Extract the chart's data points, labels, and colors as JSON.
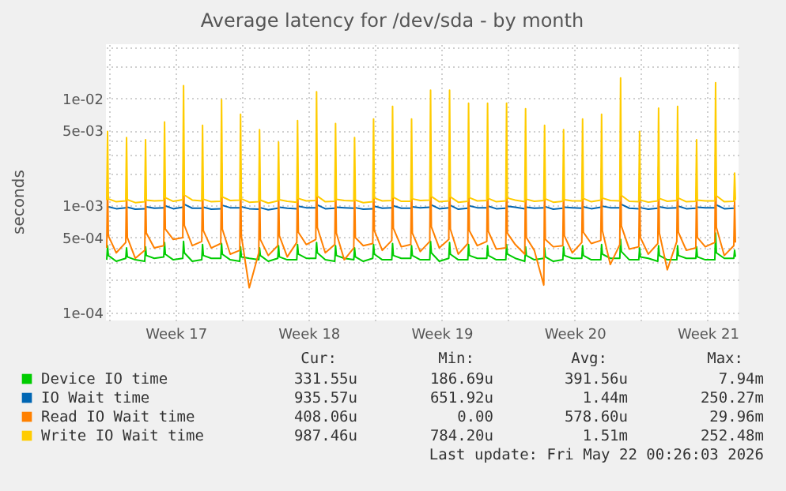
{
  "chart_data": {
    "type": "line",
    "title": "Average latency for /dev/sda - by month",
    "ylabel": "seconds",
    "log": "y",
    "grid": true,
    "legend": "bottom",
    "line_style": "solid",
    "marker": "none",
    "xlim": [
      "2026-04-19T20:00",
      "2026-05-23T03:00"
    ],
    "ylim": [
      8.4e-05,
      0.032
    ],
    "xticks": [
      {
        "value": "2026-04-23T12:00",
        "label": "Week 17"
      },
      {
        "value": "2026-04-30T12:00",
        "label": "Week 18"
      },
      {
        "value": "2026-05-07T12:00",
        "label": "Week 19"
      },
      {
        "value": "2026-05-14T12:00",
        "label": "Week 20"
      },
      {
        "value": "2026-05-21T12:00",
        "label": "Week 21"
      },
      {
        "value": "2026-04-20T00:00",
        "label": null
      },
      {
        "value": "2026-04-27T00:00",
        "label": null
      },
      {
        "value": "2026-05-04T00:00",
        "label": null
      },
      {
        "value": "2026-05-11T00:00",
        "label": null
      },
      {
        "value": "2026-05-18T00:00",
        "label": null
      }
    ],
    "yticks": [
      {
        "value": 0.0001,
        "label": "1e-04"
      },
      {
        "value": 0.0005,
        "label": "5e-04"
      },
      {
        "value": 0.001,
        "label": "1e-03"
      },
      {
        "value": 0.005,
        "label": "5e-03"
      },
      {
        "value": 0.01,
        "label": "1e-02"
      },
      {
        "value": 0.0002,
        "label": null
      },
      {
        "value": 0.0003,
        "label": null
      },
      {
        "value": 0.0004,
        "label": null
      },
      {
        "value": 0.002,
        "label": null
      },
      {
        "value": 0.003,
        "label": null
      },
      {
        "value": 0.004,
        "label": null
      },
      {
        "value": 0.02,
        "label": null
      },
      {
        "value": 0.03,
        "label": null
      }
    ],
    "x": [
      "2026-04-19T21:00",
      "2026-04-19T22:00",
      "2026-04-19T23:00",
      "2026-04-20T09:00",
      "2026-04-20T21:00",
      "2026-04-20T22:00",
      "2026-04-20T23:00",
      "2026-04-21T09:00",
      "2026-04-21T21:00",
      "2026-04-21T22:00",
      "2026-04-21T23:00",
      "2026-04-22T09:00",
      "2026-04-22T21:00",
      "2026-04-22T22:00",
      "2026-04-22T23:00",
      "2026-04-23T09:00",
      "2026-04-23T21:00",
      "2026-04-23T22:00",
      "2026-04-23T23:00",
      "2026-04-24T09:00",
      "2026-04-24T21:00",
      "2026-04-24T22:00",
      "2026-04-24T23:00",
      "2026-04-25T09:00",
      "2026-04-25T21:00",
      "2026-04-25T22:00",
      "2026-04-25T23:00",
      "2026-04-26T09:00",
      "2026-04-26T21:00",
      "2026-04-26T22:00",
      "2026-04-26T23:00",
      "2026-04-27T09:00",
      "2026-04-27T21:00",
      "2026-04-27T22:00",
      "2026-04-27T23:00",
      "2026-04-28T09:00",
      "2026-04-28T21:00",
      "2026-04-28T22:00",
      "2026-04-28T23:00",
      "2026-04-29T09:00",
      "2026-04-29T21:00",
      "2026-04-29T22:00",
      "2026-04-29T23:00",
      "2026-04-30T09:00",
      "2026-04-30T21:00",
      "2026-04-30T22:00",
      "2026-04-30T23:00",
      "2026-05-01T09:00",
      "2026-05-01T21:00",
      "2026-05-01T22:00",
      "2026-05-01T23:00",
      "2026-05-02T09:00",
      "2026-05-02T21:00",
      "2026-05-02T22:00",
      "2026-05-02T23:00",
      "2026-05-03T09:00",
      "2026-05-03T21:00",
      "2026-05-03T22:00",
      "2026-05-03T23:00",
      "2026-05-04T09:00",
      "2026-05-04T21:00",
      "2026-05-04T22:00",
      "2026-05-04T23:00",
      "2026-05-05T09:00",
      "2026-05-05T21:00",
      "2026-05-05T22:00",
      "2026-05-05T23:00",
      "2026-05-06T09:00",
      "2026-05-06T21:00",
      "2026-05-06T22:00",
      "2026-05-06T23:00",
      "2026-05-07T09:00",
      "2026-05-07T21:00",
      "2026-05-07T22:00",
      "2026-05-07T23:00",
      "2026-05-08T09:00",
      "2026-05-08T21:00",
      "2026-05-08T22:00",
      "2026-05-08T23:00",
      "2026-05-09T09:00",
      "2026-05-09T21:00",
      "2026-05-09T22:00",
      "2026-05-09T23:00",
      "2026-05-10T09:00",
      "2026-05-10T21:00",
      "2026-05-10T22:00",
      "2026-05-10T23:00",
      "2026-05-11T09:00",
      "2026-05-11T21:00",
      "2026-05-11T22:00",
      "2026-05-11T23:00",
      "2026-05-12T09:00",
      "2026-05-12T21:00",
      "2026-05-12T22:00",
      "2026-05-12T23:00",
      "2026-05-13T09:00",
      "2026-05-13T21:00",
      "2026-05-13T22:00",
      "2026-05-13T23:00",
      "2026-05-14T09:00",
      "2026-05-14T21:00",
      "2026-05-14T22:00",
      "2026-05-14T23:00",
      "2026-05-15T09:00",
      "2026-05-15T21:00",
      "2026-05-15T22:00",
      "2026-05-15T23:00",
      "2026-05-16T09:00",
      "2026-05-16T21:00",
      "2026-05-16T22:00",
      "2026-05-16T23:00",
      "2026-05-17T09:00",
      "2026-05-17T21:00",
      "2026-05-17T22:00",
      "2026-05-17T23:00",
      "2026-05-18T09:00",
      "2026-05-18T21:00",
      "2026-05-18T22:00",
      "2026-05-18T23:00",
      "2026-05-19T09:00",
      "2026-05-19T21:00",
      "2026-05-19T22:00",
      "2026-05-19T23:00",
      "2026-05-20T09:00",
      "2026-05-20T21:00",
      "2026-05-20T22:00",
      "2026-05-20T23:00",
      "2026-05-21T09:00",
      "2026-05-21T21:00",
      "2026-05-21T22:00",
      "2026-05-21T23:00",
      "2026-05-22T09:00",
      "2026-05-22T21:00",
      "2026-05-22T22:00",
      "2026-05-22T23:00"
    ],
    "series": [
      {
        "name": "Device IO time",
        "color": "#00cc00",
        "values": [
          0.00031,
          0.00042,
          0.00034,
          0.0003,
          0.00032,
          0.0004,
          0.00033,
          0.00031,
          0.0003,
          0.00041,
          0.00034,
          0.00032,
          0.00033,
          0.00045,
          0.00035,
          0.00031,
          0.00032,
          0.00046,
          0.00036,
          0.0003,
          0.00031,
          0.00043,
          0.00034,
          0.00032,
          0.00032,
          0.00044,
          0.00035,
          0.00031,
          0.0003,
          0.00041,
          0.00033,
          0.00032,
          0.00031,
          0.0004,
          0.00034,
          0.0003,
          0.00032,
          0.00042,
          0.00033,
          0.00031,
          0.00031,
          0.00043,
          0.00035,
          0.00032,
          0.00032,
          0.00045,
          0.00036,
          0.00031,
          0.0003,
          0.00042,
          0.00034,
          0.00032,
          0.00031,
          0.0004,
          0.00033,
          0.0003,
          0.00032,
          0.00043,
          0.00035,
          0.00031,
          0.00031,
          0.00044,
          0.00034,
          0.00032,
          0.00032,
          0.00042,
          0.00034,
          0.00031,
          0.00031,
          0.00046,
          0.00036,
          0.0003,
          0.00032,
          0.00045,
          0.00035,
          0.00031,
          0.00031,
          0.00043,
          0.00034,
          0.00032,
          0.00032,
          0.00042,
          0.00034,
          0.00031,
          0.00031,
          0.00043,
          0.00035,
          0.00032,
          0.0003,
          0.00041,
          0.00034,
          0.00031,
          0.00032,
          0.0004,
          0.00033,
          0.0003,
          0.00031,
          0.00041,
          0.00034,
          0.00032,
          0.00032,
          0.00042,
          0.00034,
          0.00031,
          0.00031,
          0.00043,
          0.00035,
          0.00032,
          0.00032,
          0.00048,
          0.00037,
          0.00031,
          0.00031,
          0.0004,
          0.00033,
          0.00032,
          0.0003,
          0.00042,
          0.00034,
          0.00031,
          0.00031,
          0.00042,
          0.00034,
          0.00032,
          0.00032,
          0.00041,
          0.00033,
          0.00031,
          0.00031,
          0.00055,
          0.00036,
          0.00032,
          0.00032,
          0.00038,
          0.00033
        ]
      },
      {
        "name": "IO Wait time",
        "color": "#0066b3",
        "values": [
          0.00094,
          null,
          0.00097,
          0.00093,
          0.00095,
          null,
          0.00096,
          0.00092,
          0.00093,
          null,
          0.00097,
          0.00094,
          0.00095,
          null,
          0.00099,
          0.00093,
          0.00096,
          null,
          0.00102,
          0.00094,
          0.00094,
          null,
          0.00096,
          0.00092,
          0.00093,
          null,
          0.001,
          0.00095,
          0.00095,
          null,
          0.00097,
          0.00093,
          0.00092,
          null,
          0.00095,
          0.00091,
          0.00094,
          null,
          0.00096,
          0.00094,
          0.00093,
          null,
          0.00098,
          0.00095,
          0.00095,
          null,
          0.00101,
          0.00093,
          0.00094,
          null,
          0.00096,
          0.00095,
          0.00094,
          null,
          0.00095,
          0.00092,
          0.00093,
          null,
          0.00098,
          0.00094,
          0.00095,
          null,
          0.00099,
          0.00094,
          0.00094,
          null,
          0.00097,
          0.00095,
          0.00096,
          null,
          0.00101,
          0.00093,
          0.00095,
          null,
          0.001,
          0.00092,
          0.00094,
          null,
          0.00099,
          0.00095,
          0.00095,
          null,
          0.00098,
          0.00093,
          0.00094,
          null,
          0.00098,
          0.00096,
          0.00093,
          null,
          0.00096,
          0.00094,
          0.00095,
          null,
          0.00097,
          0.00092,
          0.00094,
          null,
          0.00096,
          0.00095,
          0.00094,
          null,
          0.00097,
          0.00093,
          0.00096,
          null,
          0.00098,
          0.00095,
          0.00095,
          null,
          0.00102,
          0.00094,
          0.00093,
          null,
          0.00095,
          0.00092,
          0.00094,
          null,
          0.00097,
          0.00094,
          0.00095,
          null,
          0.00098,
          0.00093,
          0.00094,
          null,
          0.00096,
          0.00095,
          0.00095,
          null,
          0.00101,
          0.00093,
          0.00094,
          null,
          0.00096
        ]
      },
      {
        "name": "Read IO Wait time",
        "color": "#ff8000",
        "values": [
          0.0004,
          0.0018,
          0.00052,
          0.00036,
          0.00045,
          0.0016,
          0.0005,
          0.00032,
          0.00038,
          0.0015,
          0.00055,
          0.0004,
          0.00042,
          0.0021,
          0.0006,
          0.00048,
          0.0005,
          0.0032,
          0.00065,
          0.00042,
          0.00046,
          0.0019,
          0.00058,
          0.0004,
          0.00044,
          0.0025,
          0.0006,
          0.00035,
          0.00038,
          0.0022,
          0.00052,
          0.00017,
          0.00036,
          0.0018,
          0.00048,
          0.00034,
          0.00042,
          0.0015,
          0.00052,
          0.00033,
          0.00045,
          0.0021,
          0.00056,
          0.00043,
          0.00048,
          0.003,
          0.00062,
          0.00036,
          0.00043,
          0.0019,
          0.00055,
          0.00031,
          0.0004,
          0.0016,
          0.0005,
          0.00042,
          0.00044,
          0.0021,
          0.00058,
          0.00038,
          0.00047,
          0.0026,
          0.00061,
          0.00041,
          0.00043,
          0.002,
          0.00055,
          0.00037,
          0.00046,
          0.0031,
          0.00063,
          0.0004,
          0.00048,
          0.003,
          0.0006,
          0.00035,
          0.00044,
          0.0024,
          0.00058,
          0.00042,
          0.00046,
          0.0024,
          0.00057,
          0.00039,
          0.0004,
          0.0023,
          0.00055,
          0.00043,
          0.00035,
          0.0021,
          0.0005,
          0.00038,
          0.00018,
          0.0018,
          0.00048,
          0.00041,
          0.00042,
          0.0017,
          0.00052,
          0.00036,
          0.00045,
          0.002,
          0.00056,
          0.00044,
          0.00047,
          0.0022,
          0.00058,
          0.00028,
          0.00043,
          0.0034,
          0.00064,
          0.00039,
          0.00041,
          0.0017,
          0.0005,
          0.00035,
          0.00044,
          0.0023,
          0.00055,
          0.00025,
          0.00046,
          0.0024,
          0.00056,
          0.00038,
          0.0004,
          0.0015,
          0.0005,
          0.00041,
          0.00045,
          0.0032,
          0.00062,
          0.00034,
          0.00042,
          0.0011,
          0.00045
        ]
      },
      {
        "name": "Write IO Wait time",
        "color": "#ffcc00",
        "values": [
          0.00112,
          0.0049,
          0.00115,
          0.00108,
          0.0011,
          0.0043,
          0.00113,
          0.00106,
          0.00108,
          0.0041,
          0.00112,
          0.0011,
          0.00111,
          0.006,
          0.00118,
          0.00109,
          0.00113,
          0.0131,
          0.00125,
          0.00112,
          0.0011,
          0.0056,
          0.00114,
          0.00108,
          0.00109,
          0.0097,
          0.0012,
          0.00111,
          0.00112,
          0.0071,
          0.00115,
          0.00107,
          0.00108,
          0.0051,
          0.00112,
          0.00105,
          0.0011,
          0.0039,
          0.00113,
          0.00109,
          0.00107,
          0.0062,
          0.00116,
          0.0011,
          0.00111,
          0.0115,
          0.00122,
          0.00108,
          0.00109,
          0.0058,
          0.00114,
          0.00111,
          0.0011,
          0.0043,
          0.00112,
          0.00106,
          0.00108,
          0.0064,
          0.00117,
          0.0011,
          0.00111,
          0.0084,
          0.00119,
          0.00109,
          0.00109,
          0.0064,
          0.00115,
          0.00111,
          0.00112,
          0.0119,
          0.00121,
          0.00108,
          0.0011,
          0.0119,
          0.0012,
          0.00107,
          0.00109,
          0.009,
          0.00118,
          0.0011,
          0.00111,
          0.009,
          0.00116,
          0.00108,
          0.0011,
          0.009,
          0.00117,
          0.00112,
          0.00108,
          0.008,
          0.00114,
          0.00109,
          0.00111,
          0.0056,
          0.00115,
          0.00107,
          0.00109,
          0.0051,
          0.00113,
          0.0011,
          0.0011,
          0.0064,
          0.00116,
          0.00108,
          0.00112,
          0.0071,
          0.00117,
          0.00111,
          0.0011,
          0.0155,
          0.00124,
          0.00109,
          0.00108,
          0.0049,
          0.00112,
          0.00107,
          0.0011,
          0.0081,
          0.00116,
          0.00109,
          0.00111,
          0.0084,
          0.00117,
          0.00108,
          0.00109,
          0.0041,
          0.00112,
          0.0011,
          0.0011,
          0.014,
          0.00123,
          0.00108,
          0.00109,
          0.002,
          0.00112
        ]
      }
    ],
    "annotations": [
      "Cur:",
      "Min:",
      "Avg:",
      "Max:",
      "331.55u",
      "186.69u",
      "391.56u",
      "7.94m",
      "935.57u",
      "651.92u",
      "1.44m",
      "250.27m",
      "408.06u",
      "0.00",
      "578.60u",
      "29.96m",
      "987.46u",
      "784.20u",
      "1.51m",
      "252.48m",
      "Last update: Fri May 22 00:26:03 2026"
    ]
  }
}
